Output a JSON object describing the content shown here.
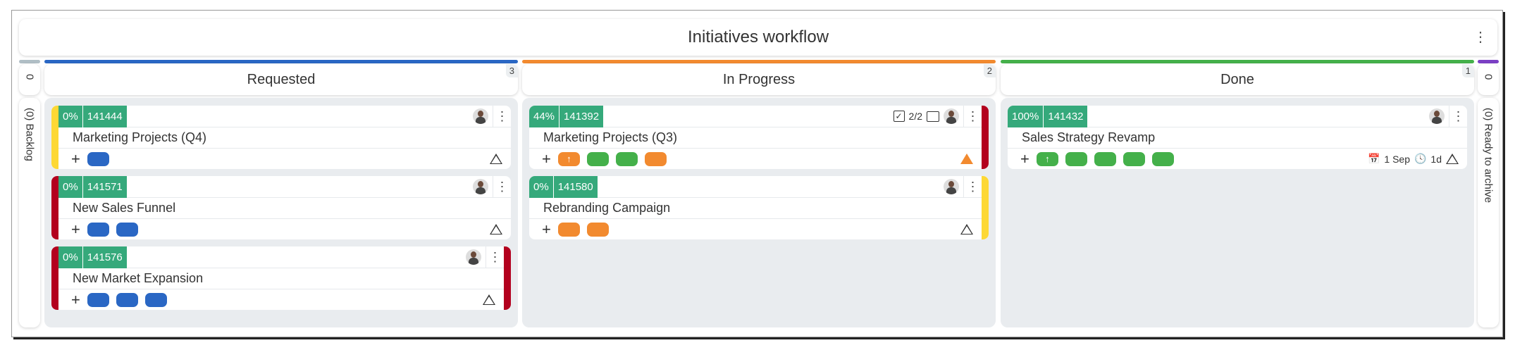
{
  "title": "Initiatives workflow",
  "colors": {
    "blue": "#2a67c4",
    "green": "#44b04a",
    "orange": "#f28a2f",
    "teal": "#35a97b",
    "red": "#b3001e",
    "yellow": "#fdd835",
    "purple": "#7b3fc4",
    "gray": "#b0bec5"
  },
  "left_column": {
    "count": "0",
    "label": "(0) Backlog"
  },
  "right_column": {
    "count": "0",
    "label": "(0) Ready to archive"
  },
  "columns": [
    {
      "name": "Requested",
      "count": "3",
      "bar": "#2a67c4",
      "cards": [
        {
          "percent": "0%",
          "id": "141444",
          "title": "Marketing Projects (Q4)",
          "left": "#fdd835",
          "right": null,
          "tags": [
            {
              "color": "#2a67c4"
            }
          ],
          "priority": "outline"
        },
        {
          "percent": "0%",
          "id": "141571",
          "title": "New Sales Funnel",
          "left": "#b3001e",
          "right": null,
          "tags": [
            {
              "color": "#2a67c4"
            },
            {
              "color": "#2a67c4"
            }
          ],
          "priority": "outline"
        },
        {
          "percent": "0%",
          "id": "141576",
          "title": "New Market Expansion",
          "left": "#b3001e",
          "right": "#b3001e",
          "tags": [
            {
              "color": "#2a67c4"
            },
            {
              "color": "#2a67c4"
            },
            {
              "color": "#2a67c4"
            }
          ],
          "priority": "outline"
        }
      ]
    },
    {
      "name": "In Progress",
      "count": "2",
      "bar": "#f28a2f",
      "cards": [
        {
          "percent": "44%",
          "id": "141392",
          "title": "Marketing Projects (Q3)",
          "left": null,
          "right": "#b3001e",
          "checklist": "2/2",
          "comments": true,
          "tags": [
            {
              "color": "#f28a2f",
              "icon": "↑"
            },
            {
              "color": "#44b04a"
            },
            {
              "color": "#44b04a"
            },
            {
              "color": "#f28a2f"
            }
          ],
          "priority": "filled-orange"
        },
        {
          "percent": "0%",
          "id": "141580",
          "title": "Rebranding Campaign",
          "left": null,
          "right": "#fdd835",
          "tags": [
            {
              "color": "#f28a2f"
            },
            {
              "color": "#f28a2f"
            }
          ],
          "priority": "outline"
        }
      ]
    },
    {
      "name": "Done",
      "count": "1",
      "bar": "#44b04a",
      "cards": [
        {
          "percent": "100%",
          "id": "141432",
          "title": "Sales Strategy Revamp",
          "left": null,
          "right": null,
          "date": "1 Sep",
          "duration": "1d",
          "tags": [
            {
              "color": "#44b04a",
              "icon": "↑"
            },
            {
              "color": "#44b04a"
            },
            {
              "color": "#44b04a"
            },
            {
              "color": "#44b04a"
            },
            {
              "color": "#44b04a"
            }
          ],
          "priority": "outline"
        }
      ]
    }
  ]
}
